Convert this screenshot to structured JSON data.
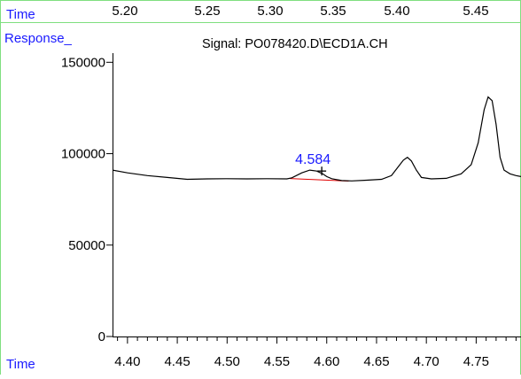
{
  "header": {
    "time_label": "Time",
    "top_ticks": [
      "5.20",
      "5.25",
      "5.30",
      "5.35",
      "5.40",
      "5.45"
    ],
    "response_label": "Response_",
    "signal_title": "Signal: PO078420.D\\ECD1A.CH"
  },
  "footer": {
    "time_label": "Time"
  },
  "colors": {
    "frame_green": "#7fdf7f",
    "label_blue": "#1a1aff",
    "trace": "#000000",
    "baseline_red": "#e00000"
  },
  "chart_data": {
    "type": "line",
    "title": "Signal: PO078420.D\\ECD1A.CH",
    "ylabel": "Response_",
    "xlabel": "Time",
    "xlim": [
      4.385,
      4.795
    ],
    "ylim": [
      0,
      155000
    ],
    "y_ticks": [
      0,
      50000,
      100000,
      150000
    ],
    "y_tick_labels": [
      "0",
      "50000",
      "100000",
      "150000"
    ],
    "x_ticks": [
      4.4,
      4.45,
      4.5,
      4.55,
      4.6,
      4.65,
      4.7,
      4.75
    ],
    "x_tick_labels": [
      "4.40",
      "4.45",
      "4.50",
      "4.55",
      "4.60",
      "4.65",
      "4.70",
      "4.75"
    ],
    "x_minor_step": 0.01,
    "series": [
      {
        "x": [
          4.385,
          4.4,
          4.42,
          4.44,
          4.46,
          4.48,
          4.5,
          4.52,
          4.54,
          4.56,
          4.565,
          4.575,
          4.583,
          4.59,
          4.596,
          4.6,
          4.605,
          4.615,
          4.625,
          4.64,
          4.655,
          4.665,
          4.672,
          4.677,
          4.681,
          4.685,
          4.69,
          4.695,
          4.705,
          4.72,
          4.735,
          4.745,
          4.752,
          4.758,
          4.762,
          4.766,
          4.77,
          4.774,
          4.778,
          4.784,
          4.79,
          4.795
        ],
        "y": [
          91000,
          89500,
          88000,
          87000,
          86000,
          86200,
          86300,
          86200,
          86300,
          86200,
          86800,
          89500,
          91000,
          90500,
          89000,
          87500,
          86300,
          85300,
          85100,
          85500,
          86000,
          88000,
          93000,
          96500,
          98000,
          96000,
          91000,
          87000,
          86200,
          86500,
          89000,
          94000,
          106000,
          124000,
          131000,
          129000,
          116000,
          98000,
          91000,
          89000,
          88000,
          87500
        ]
      }
    ],
    "integration_baseline": {
      "x": [
        4.563,
        4.622
      ],
      "y": [
        86400,
        85000
      ]
    },
    "peak_annotation": {
      "label": "4.584",
      "x": 4.595,
      "y": 90500
    }
  }
}
